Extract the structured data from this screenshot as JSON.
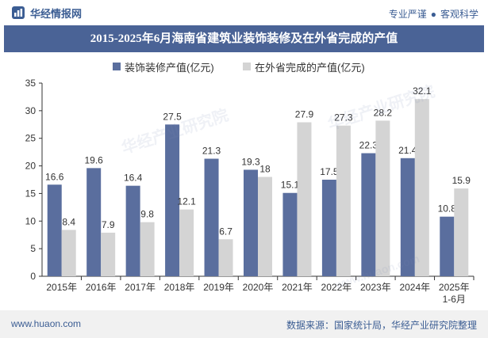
{
  "header": {
    "brand": "华经情报网",
    "slogan_left": "专业严谨",
    "slogan_right": "客观科学"
  },
  "watermark": {
    "text": "华经产业研究院",
    "url": "www.huaon.com"
  },
  "colors": {
    "series1": "#5a6e9e",
    "series2": "#d4d4d4",
    "title_bg": "#4a6396",
    "brand": "#3b5d93"
  },
  "chart_data": {
    "type": "bar",
    "title": "2015-2025年6月海南省建筑业装饰装修及在外省完成的产值",
    "categories": [
      "2015年",
      "2016年",
      "2017年",
      "2018年",
      "2019年",
      "2020年",
      "2021年",
      "2022年",
      "2023年",
      "2024年",
      "2025年\n1-6月"
    ],
    "series": [
      {
        "name": "装饰装修产值(亿元)",
        "values": [
          16.6,
          19.6,
          16.4,
          27.5,
          21.3,
          19.3,
          15.1,
          17.5,
          22.3,
          21.4,
          10.8
        ]
      },
      {
        "name": "在外省完成的产值(亿元)",
        "values": [
          8.4,
          7.9,
          9.8,
          12.1,
          6.7,
          18,
          27.9,
          27.3,
          28.2,
          32.1,
          15.9
        ]
      }
    ],
    "ylim": [
      0,
      35
    ],
    "yticks": [
      0,
      5,
      10,
      15,
      20,
      25,
      30,
      35
    ],
    "legend": "top-center",
    "grid": false
  },
  "footer": {
    "url": "www.huaon.com",
    "source": "数据来源：国家统计局，华经产业研究院整理"
  }
}
